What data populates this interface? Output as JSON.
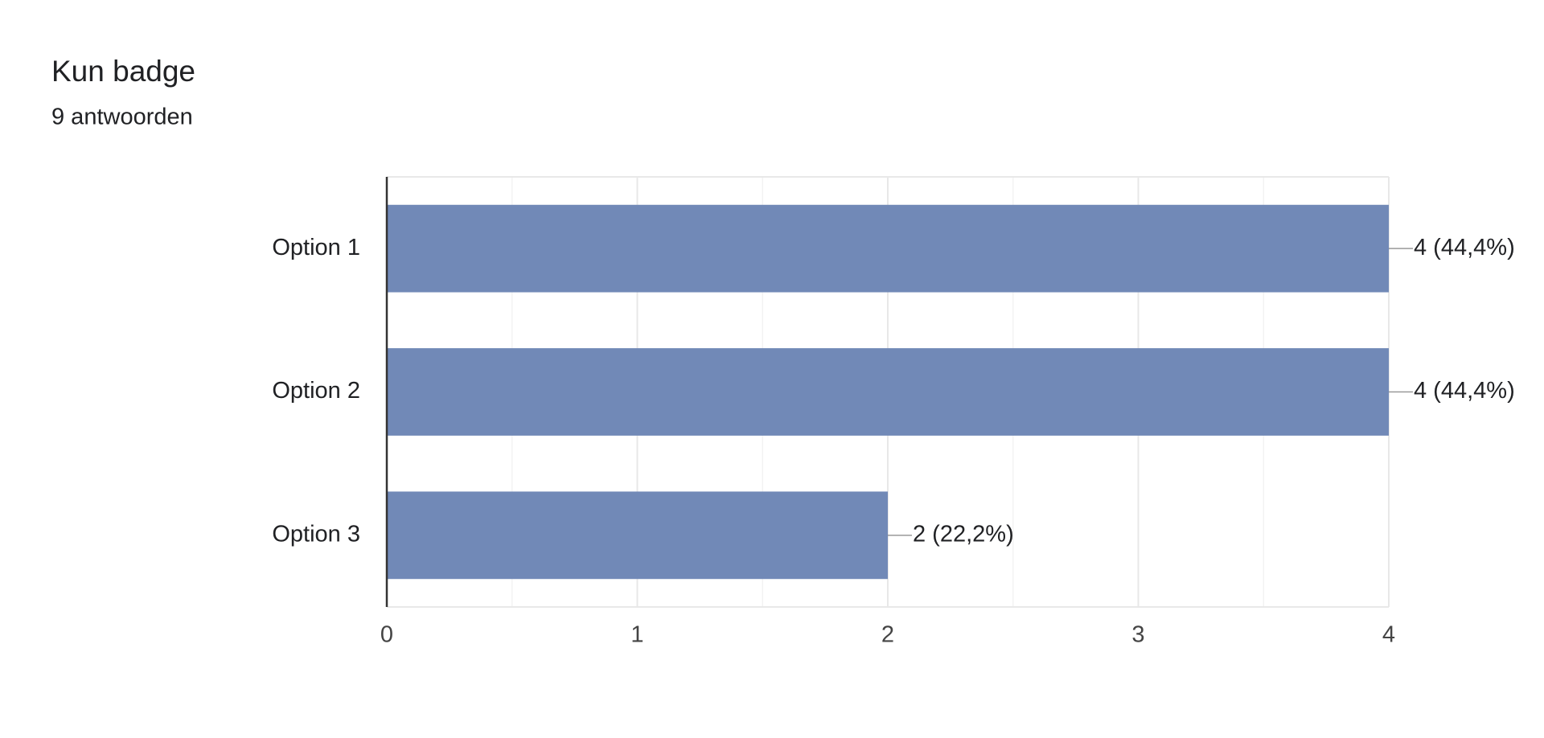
{
  "chart_data": {
    "type": "bar",
    "orientation": "horizontal",
    "title": "Kun badge",
    "subtitle": "9 antwoorden",
    "categories": [
      "Option 1",
      "Option 2",
      "Option 3"
    ],
    "values": [
      4,
      4,
      2
    ],
    "value_labels": [
      "4 (44,4%)",
      "4 (44,4%)",
      "2 (22,2%)"
    ],
    "color": "#7189b7",
    "xlim": [
      0,
      4
    ],
    "xticks": [
      0,
      1,
      2,
      3,
      4
    ],
    "grid": true
  }
}
